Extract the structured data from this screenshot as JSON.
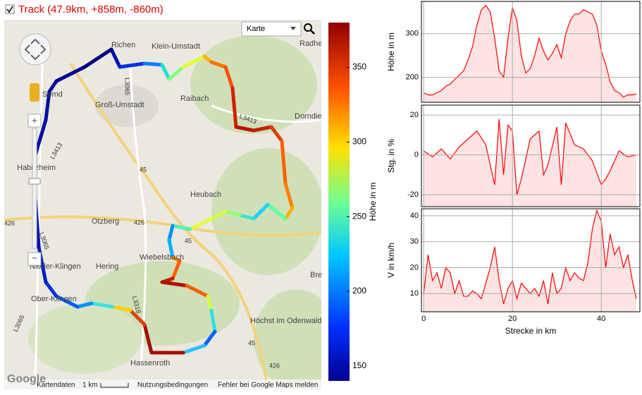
{
  "header": {
    "checkbox_checked": true,
    "title": "Track (47.9km, +858m, -860m)"
  },
  "map": {
    "type_selector": "Karte",
    "places": [
      "Richen",
      "Klein-Umstadt",
      "Radheim",
      "Groß-Umstadt",
      "Raibach",
      "Dorndiel",
      "Habitzheim",
      "Heubach",
      "Otzberg",
      "Wiebelsbach",
      "Hering",
      "Nieder-Klingen",
      "Ober-Klingen",
      "Höchst im Odenwald",
      "Hassenroth",
      "Bre",
      "Semd"
    ],
    "roads": [
      "L3065",
      "L3413",
      "L3413",
      "45",
      "426",
      "426",
      "45",
      "L3318",
      "45",
      "426",
      "L3065",
      "L3065"
    ],
    "footer": {
      "logo": "Google",
      "data": "Kartendaten",
      "scale": "1 km",
      "terms": "Nutzungsbedingungen",
      "report": "Fehler bei Google Maps melden"
    }
  },
  "colorbar": {
    "label": "Höhe in m",
    "lim": [
      140,
      380
    ],
    "ticks": [
      150,
      200,
      250,
      300,
      350
    ]
  },
  "chart_data": [
    {
      "type": "area",
      "ylabel": "Höhe in m",
      "color": "#ff0000",
      "fill": "#fde3e3",
      "grid": true,
      "xlim": [
        -0.5,
        48.7
      ],
      "xticks": [
        0,
        20,
        40
      ],
      "ylim": [
        143,
        374
      ],
      "yticks": [
        200,
        300
      ],
      "x": [
        0,
        1,
        2,
        3,
        4,
        5,
        6,
        7,
        8,
        9,
        10,
        11,
        12,
        13,
        14,
        15,
        16,
        17,
        18,
        19,
        20,
        21,
        22,
        23,
        24,
        25,
        26,
        27,
        28,
        29,
        30,
        31,
        32,
        33,
        34,
        35,
        36,
        37,
        38,
        39,
        40,
        41,
        42,
        43,
        44,
        45,
        46,
        47,
        47.9
      ],
      "values": [
        165,
        160,
        160,
        165,
        170,
        180,
        185,
        195,
        205,
        215,
        240,
        270,
        320,
        355,
        365,
        350,
        290,
        215,
        200,
        290,
        360,
        330,
        250,
        210,
        220,
        250,
        290,
        260,
        240,
        255,
        275,
        245,
        300,
        330,
        345,
        345,
        355,
        350,
        345,
        320,
        260,
        230,
        190,
        170,
        165,
        155,
        160,
        160,
        162
      ]
    },
    {
      "type": "area",
      "ylabel": "Stg. in %",
      "color": "#ff0000",
      "fill": "#fde3e3",
      "grid": true,
      "xlim": [
        -0.5,
        48.7
      ],
      "xticks": [
        0,
        20,
        40
      ],
      "ylim": [
        -26,
        25
      ],
      "yticks": [
        -20,
        0,
        20
      ],
      "x": [
        0,
        2,
        4,
        6,
        8,
        10,
        12,
        14,
        16,
        17,
        18,
        19,
        20,
        21,
        22,
        24,
        26,
        27,
        28,
        30,
        31,
        32,
        34,
        36,
        38,
        40,
        41,
        42,
        44,
        46,
        47.9
      ],
      "values": [
        2,
        -1,
        3,
        -2,
        4,
        8,
        12,
        5,
        -15,
        18,
        -10,
        15,
        12,
        -20,
        -12,
        8,
        12,
        -10,
        -5,
        14,
        -15,
        16,
        5,
        3,
        -3,
        -15,
        -12,
        -8,
        2,
        -1,
        0
      ]
    },
    {
      "type": "area",
      "ylabel": "V in km/h",
      "xlabel": "Strecke in km",
      "color": "#ff0000",
      "fill": "#fde3e3",
      "grid": true,
      "xlim": [
        -0.5,
        48.7
      ],
      "xticks": [
        0,
        20,
        40
      ],
      "ylim": [
        3,
        42.7
      ],
      "yticks": [
        10,
        20,
        30,
        40
      ],
      "x": [
        0,
        1,
        2,
        3,
        4,
        5,
        6,
        7,
        8,
        9,
        10,
        11,
        12,
        13,
        14,
        15,
        16,
        17,
        18,
        19,
        20,
        21,
        22,
        23,
        24,
        25,
        26,
        27,
        28,
        29,
        30,
        31,
        32,
        33,
        34,
        35,
        36,
        37,
        38,
        39,
        40,
        41,
        42,
        43,
        44,
        45,
        46,
        47,
        47.9
      ],
      "values": [
        10,
        25,
        15,
        18,
        12,
        20,
        18,
        10,
        15,
        9,
        9,
        11,
        10,
        8,
        14,
        20,
        28,
        15,
        6,
        12,
        15,
        8,
        14,
        12,
        10,
        12,
        9,
        15,
        6,
        18,
        10,
        12,
        20,
        15,
        18,
        16,
        15,
        22,
        35,
        42,
        38,
        20,
        33,
        25,
        28,
        20,
        25,
        15,
        8
      ]
    }
  ]
}
